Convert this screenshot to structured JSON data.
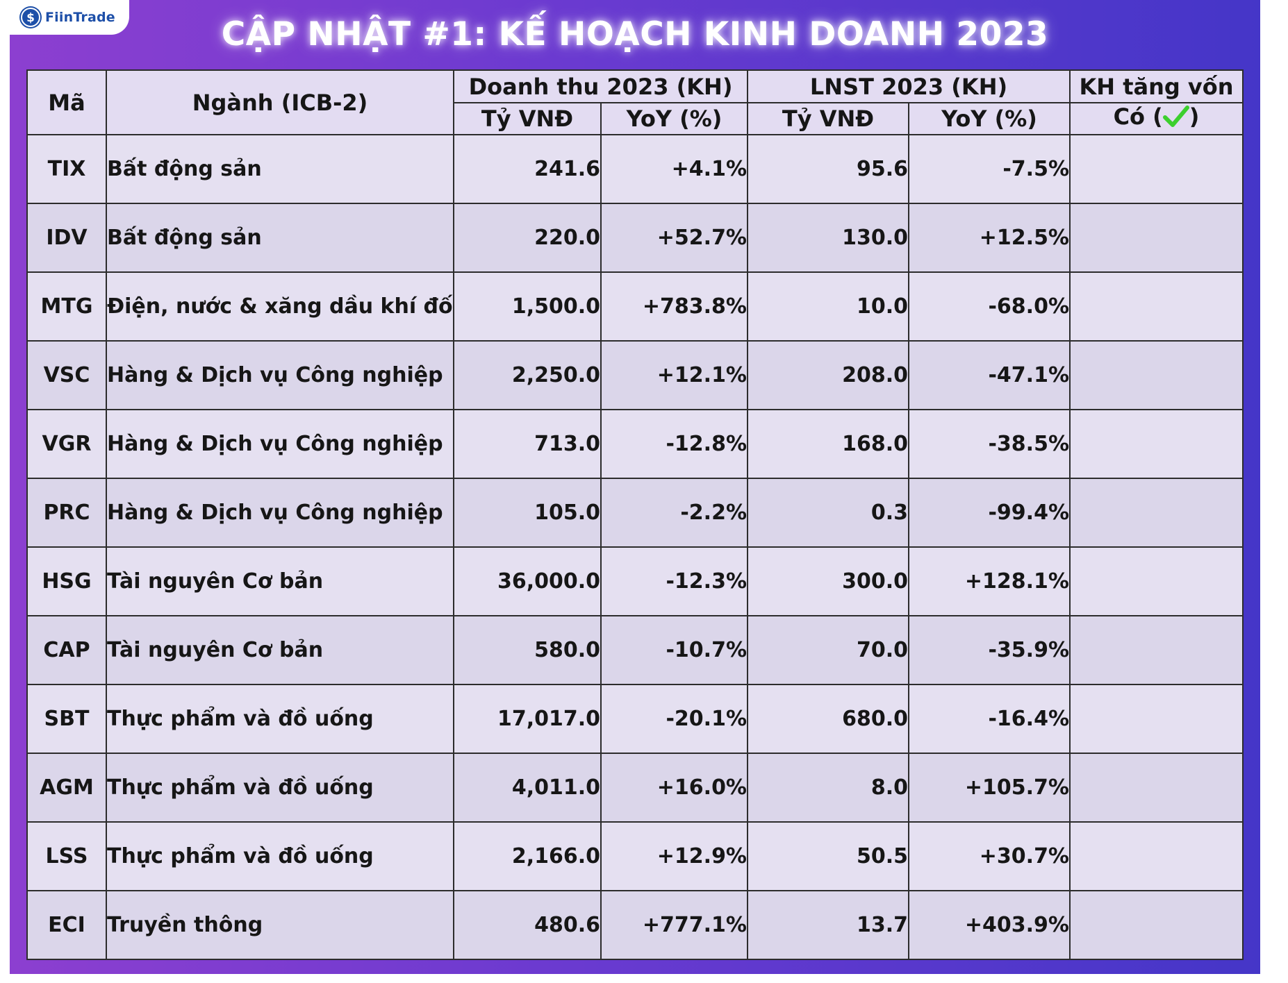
{
  "brand": {
    "name": "FiinTrade",
    "logo_glyph": "$"
  },
  "title": "CẬP NHẬT #1: KẾ HOẠCH KINH DOANH 2023",
  "colors": {
    "positive": "#49d63a",
    "negative": "#f0302e",
    "check": "#3ccf2e"
  },
  "table": {
    "headers": {
      "code": "Mã",
      "sector": "Ngành (ICB-2)",
      "revenue_group": "Doanh thu 2023 (KH)",
      "profit_group": "LNST 2023 (KH)",
      "capital_group": "KH tăng vốn",
      "unit": "Tỷ VNĐ",
      "yoy": "YoY (%)",
      "capital_yes_prefix": "Có (",
      "capital_yes_suffix": ")",
      "capital_yes_icon": "checkmark-icon"
    },
    "rows": [
      {
        "code": "TIX",
        "sector": "Bất động sản",
        "revenue": "241.6",
        "revenue_yoy": "+4.1%",
        "profit": "95.6",
        "profit_yoy": "-7.5%",
        "capital": ""
      },
      {
        "code": "IDV",
        "sector": "Bất động sản",
        "revenue": "220.0",
        "revenue_yoy": "+52.7%",
        "profit": "130.0",
        "profit_yoy": "+12.5%",
        "capital": ""
      },
      {
        "code": "MTG",
        "sector": "Điện, nước & xăng dầu khí đốt",
        "revenue": "1,500.0",
        "revenue_yoy": "+783.8%",
        "profit": "10.0",
        "profit_yoy": "-68.0%",
        "capital": ""
      },
      {
        "code": "VSC",
        "sector": "Hàng & Dịch vụ Công nghiệp",
        "revenue": "2,250.0",
        "revenue_yoy": "+12.1%",
        "profit": "208.0",
        "profit_yoy": "-47.1%",
        "capital": ""
      },
      {
        "code": "VGR",
        "sector": "Hàng & Dịch vụ Công nghiệp",
        "revenue": "713.0",
        "revenue_yoy": "-12.8%",
        "profit": "168.0",
        "profit_yoy": "-38.5%",
        "capital": ""
      },
      {
        "code": "PRC",
        "sector": "Hàng & Dịch vụ Công nghiệp",
        "revenue": "105.0",
        "revenue_yoy": "-2.2%",
        "profit": "0.3",
        "profit_yoy": "-99.4%",
        "capital": ""
      },
      {
        "code": "HSG",
        "sector": "Tài nguyên Cơ bản",
        "revenue": "36,000.0",
        "revenue_yoy": "-12.3%",
        "profit": "300.0",
        "profit_yoy": "+128.1%",
        "capital": ""
      },
      {
        "code": "CAP",
        "sector": "Tài nguyên Cơ bản",
        "revenue": "580.0",
        "revenue_yoy": "-10.7%",
        "profit": "70.0",
        "profit_yoy": "-35.9%",
        "capital": ""
      },
      {
        "code": "SBT",
        "sector": "Thực phẩm và đồ uống",
        "revenue": "17,017.0",
        "revenue_yoy": "-20.1%",
        "profit": "680.0",
        "profit_yoy": "-16.4%",
        "capital": ""
      },
      {
        "code": "AGM",
        "sector": "Thực phẩm và đồ uống",
        "revenue": "4,011.0",
        "revenue_yoy": "+16.0%",
        "profit": "8.0",
        "profit_yoy": "+105.7%",
        "capital": ""
      },
      {
        "code": "LSS",
        "sector": "Thực phẩm và đồ uống",
        "revenue": "2,166.0",
        "revenue_yoy": "+12.9%",
        "profit": "50.5",
        "profit_yoy": "+30.7%",
        "capital": ""
      },
      {
        "code": "ECI",
        "sector": "Truyền thông",
        "revenue": "480.6",
        "revenue_yoy": "+777.1%",
        "profit": "13.7",
        "profit_yoy": "+403.9%",
        "capital": ""
      }
    ]
  }
}
